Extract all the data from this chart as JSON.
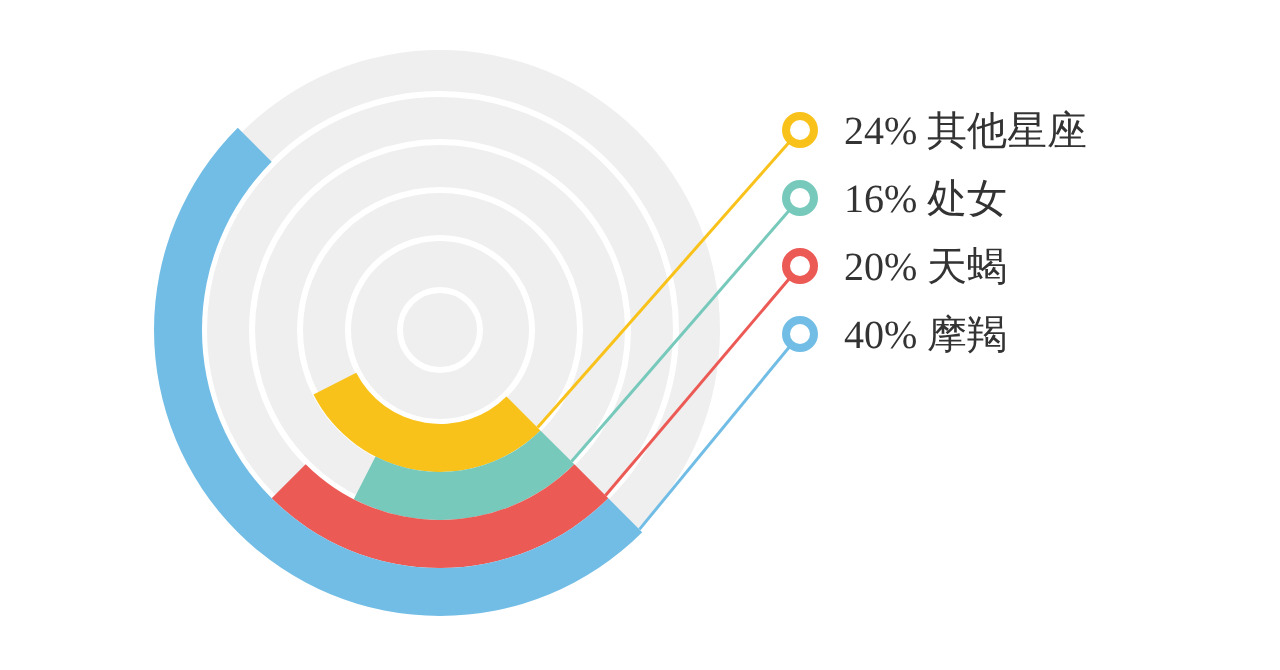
{
  "chart_data": {
    "type": "other",
    "categories": [
      "其他星座",
      "处女",
      "天蝎",
      "摩羯"
    ],
    "values": [
      24,
      16,
      20,
      40
    ],
    "value_labels": [
      "24%",
      "16%",
      "20%",
      "40%"
    ],
    "colors": [
      "#f9c21b",
      "#76c9bb",
      "#ec5a55",
      "#72bde6"
    ]
  }
}
